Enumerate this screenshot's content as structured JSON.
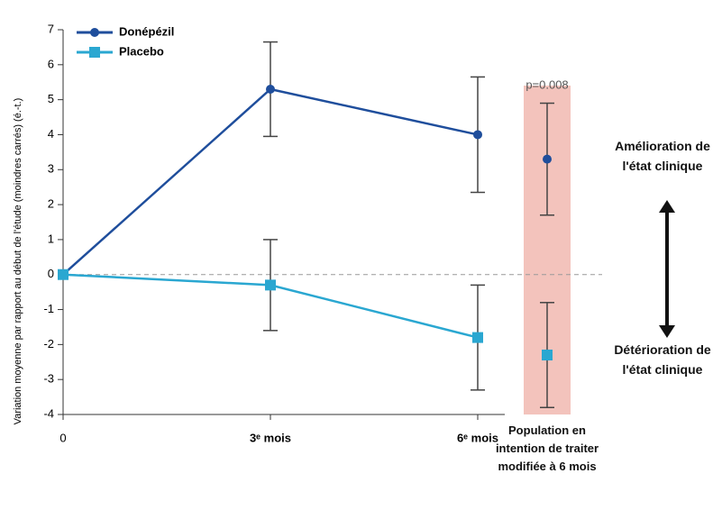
{
  "chart_data": {
    "type": "line",
    "y_label": "Variation moyenne par rapport au début de l'étude (moindres carrés) (é.-t.)",
    "categories": [
      "0",
      "3ᵉ mois",
      "6ᵉ mois",
      "Population en intention de traiter modifiée à 6 mois"
    ],
    "series": [
      {
        "name": "Donépézil",
        "color": "#1f4e9c",
        "marker": "circle",
        "values": [
          0,
          5.3,
          4.0,
          3.3
        ],
        "errors": [
          null,
          1.35,
          1.65,
          1.6
        ]
      },
      {
        "name": "Placebo",
        "color": "#2aa7d1",
        "marker": "square",
        "values": [
          0,
          -0.3,
          -1.8,
          -2.3
        ],
        "errors": [
          null,
          1.3,
          1.5,
          1.5
        ]
      }
    ],
    "ylim": [
      -4,
      7
    ],
    "yticks": [
      -4,
      -3,
      -2,
      -1,
      0,
      1,
      2,
      3,
      4,
      5,
      6,
      7
    ],
    "zero_line": true,
    "legend": "top-left",
    "highlight": {
      "category": 3,
      "label": "p=0.008",
      "color": "#f1b8b0"
    },
    "annotations": [
      "Amélioration de l'état clinique",
      "Détérioration de l'état clinique"
    ]
  }
}
